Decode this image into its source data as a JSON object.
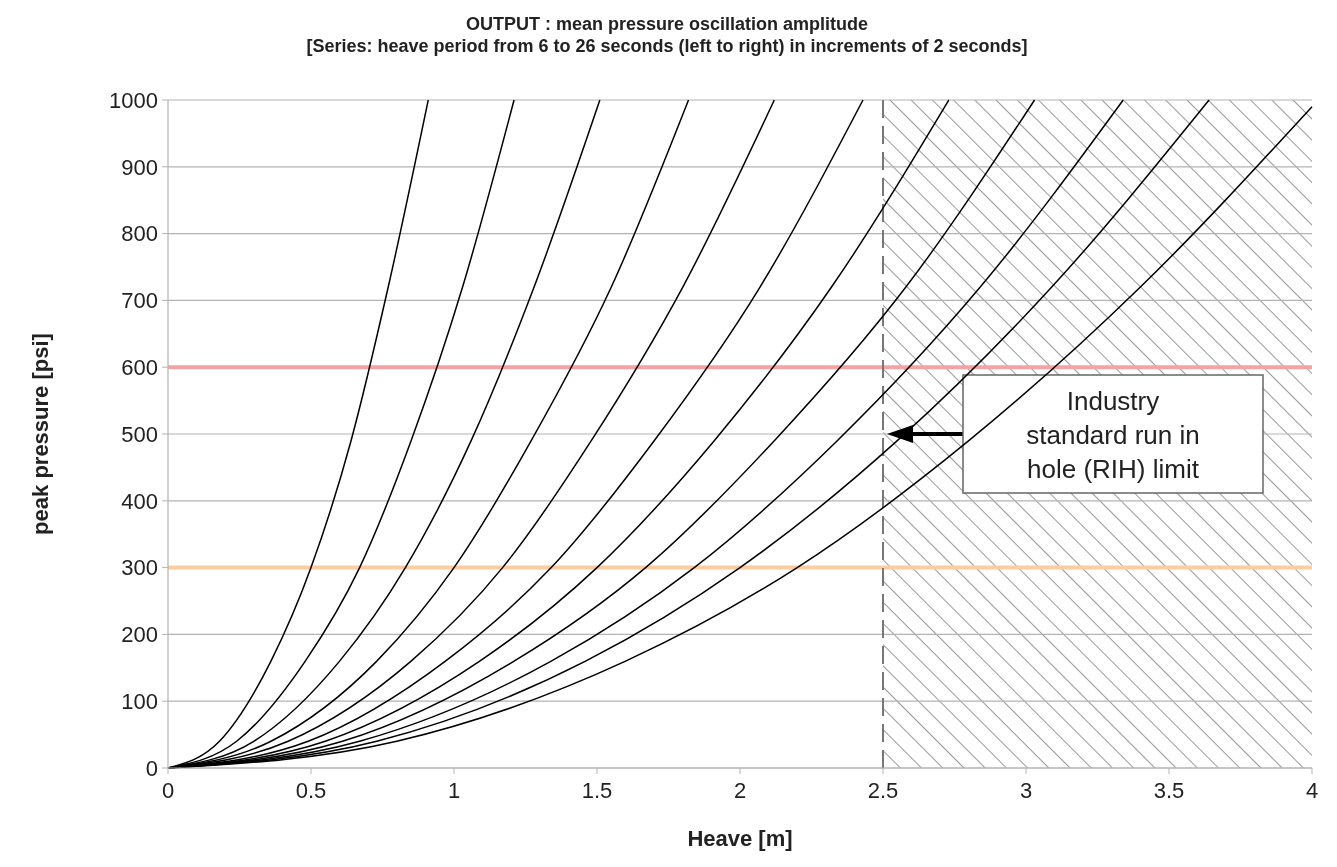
{
  "chart_data": {
    "type": "line",
    "title": "OUTPUT : mean pressure oscillation amplitude",
    "subtitle": "[Series: heave period from 6 to 26 seconds (left to right) in increments of 2 seconds]",
    "xlabel": "Heave [m]",
    "ylabel": "peak pressure [psi]",
    "xlim": [
      0,
      4
    ],
    "xticks": [
      0,
      0.5,
      1,
      1.5,
      2,
      2.5,
      3,
      3.5,
      4
    ],
    "ylim": [
      0,
      1000
    ],
    "yticks": [
      0,
      100,
      200,
      300,
      400,
      500,
      600,
      700,
      800,
      900,
      1000
    ],
    "grid": "y",
    "marker": "none",
    "line_style": "solid",
    "series": [
      {
        "color": "#000000",
        "x": [
          0,
          0.18,
          0.36,
          0.5,
          0.64,
          0.77,
          0.91
        ],
        "values": [
          0,
          40,
          160,
          300,
          490,
          720,
          1000
        ]
      },
      {
        "color": "#000000",
        "x": [
          0,
          0.24,
          0.48,
          0.67,
          0.85,
          1.03,
          1.21
        ],
        "values": [
          0,
          40,
          160,
          300,
          490,
          720,
          1000
        ]
      },
      {
        "color": "#000000",
        "x": [
          0,
          0.3,
          0.6,
          0.83,
          1.06,
          1.28,
          1.51
        ],
        "values": [
          0,
          40,
          160,
          300,
          490,
          720,
          1000
        ]
      },
      {
        "color": "#000000",
        "x": [
          0,
          0.36,
          0.73,
          1.0,
          1.27,
          1.55,
          1.82
        ],
        "values": [
          0,
          40,
          160,
          300,
          490,
          720,
          1000
        ]
      },
      {
        "color": "#000000",
        "x": [
          0,
          0.42,
          0.85,
          1.17,
          1.48,
          1.8,
          2.12
        ],
        "values": [
          0,
          40,
          160,
          300,
          490,
          720,
          1000
        ]
      },
      {
        "color": "#000000",
        "x": [
          0,
          0.49,
          0.97,
          1.34,
          1.7,
          2.07,
          2.43
        ],
        "values": [
          0,
          40,
          160,
          300,
          490,
          720,
          1000
        ]
      },
      {
        "color": "#000000",
        "x": [
          0,
          0.55,
          1.09,
          1.5,
          1.91,
          2.32,
          2.73
        ],
        "values": [
          0,
          40,
          160,
          300,
          490,
          720,
          1000
        ]
      },
      {
        "color": "#000000",
        "x": [
          0,
          0.61,
          1.21,
          1.67,
          2.12,
          2.58,
          3.03
        ],
        "values": [
          0,
          40,
          160,
          300,
          490,
          720,
          1000
        ]
      },
      {
        "color": "#000000",
        "x": [
          0,
          0.67,
          1.34,
          1.84,
          2.34,
          2.84,
          3.34
        ],
        "values": [
          0,
          40,
          160,
          300,
          490,
          720,
          1000
        ]
      },
      {
        "color": "#000000",
        "x": [
          0,
          0.73,
          1.46,
          2.0,
          2.55,
          3.09,
          3.64
        ],
        "values": [
          0,
          40,
          160,
          300,
          490,
          720,
          1000
        ]
      },
      {
        "color": "#000000",
        "x": [
          0,
          0.8,
          1.6,
          2.2,
          2.8,
          3.4,
          4.0
        ],
        "values": [
          0,
          40,
          160,
          300,
          490,
          720,
          990
        ]
      }
    ],
    "ref_lines": [
      {
        "axis": "y",
        "value": 600,
        "color": "#f4a3a3",
        "line_style": "solid"
      },
      {
        "axis": "y",
        "value": 300,
        "color": "#ffcc9e",
        "line_style": "solid"
      },
      {
        "axis": "x",
        "value": 2.5,
        "color": "#777777",
        "line_style": "dashed"
      }
    ],
    "bands": [
      {
        "axis": "x",
        "from": 2.5,
        "to": 4,
        "color": "#555555"
      }
    ],
    "annotations": [
      "Industry standard run in hole (RIH) limit"
    ]
  }
}
